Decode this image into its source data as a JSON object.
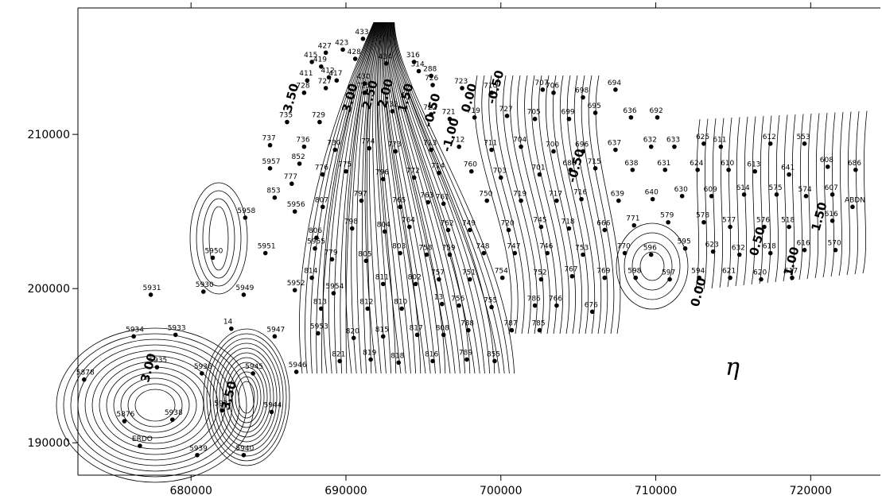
{
  "chart_data": {
    "type": "scatter",
    "annotation": "η",
    "color": "#000000",
    "xlim": [
      672700,
      724500
    ],
    "ylim": [
      187900,
      218200
    ],
    "xticks": [
      680000,
      690000,
      700000,
      710000,
      720000
    ],
    "yticks": [
      190000,
      200000,
      210000
    ],
    "wells": {
      "labels": [
        "5878",
        "5934",
        "5931",
        "5933",
        "5930",
        "5935",
        "5936",
        "5876",
        "5938",
        "ERDO",
        "5939",
        "5937",
        "5945",
        "5944",
        "5940",
        "5950",
        "5949",
        "14",
        "5947",
        "5951",
        "5958",
        "5952",
        "5946",
        "5953",
        "853",
        "5956",
        "777",
        "5957",
        "737",
        "852",
        "735",
        "736",
        "729",
        "728",
        "776",
        "807",
        "806",
        "5955",
        "779",
        "814",
        "5954",
        "813",
        "821",
        "820",
        "730",
        "775",
        "797",
        "798",
        "805",
        "812",
        "811",
        "815",
        "819",
        "818",
        "810",
        "817",
        "816",
        "808",
        "13",
        "802",
        "803",
        "804",
        "764",
        "765",
        "796",
        "774",
        "773",
        "772",
        "713",
        "714",
        "763",
        "761",
        "762",
        "758",
        "759",
        "757",
        "756",
        "788",
        "789",
        "855",
        "787",
        "755",
        "751",
        "748",
        "749",
        "750",
        "760",
        "712",
        "721",
        "719",
        "722",
        "723",
        "726",
        "711",
        "703",
        "719",
        "720",
        "747",
        "754",
        "786",
        "785",
        "752",
        "745",
        "746",
        "718",
        "717",
        "701",
        "704",
        "700",
        "727",
        "705",
        "707",
        "710",
        "706",
        "699",
        "698",
        "694",
        "695",
        "636",
        "692",
        "696",
        "688",
        "716",
        "715",
        "637",
        "638",
        "632",
        "633",
        "631",
        "639",
        "640",
        "630",
        "624",
        "625",
        "611",
        "612",
        "553",
        "610",
        "613",
        "641",
        "608",
        "686",
        "607",
        "574",
        "575",
        "614",
        "609",
        "ABDN",
        "616",
        "518",
        "576",
        "577",
        "578",
        "666",
        "771",
        "579",
        "753",
        "770",
        "596",
        "595",
        "623",
        "632",
        "618",
        "616",
        "570",
        "767",
        "769",
        "598",
        "597",
        "594",
        "621",
        "620",
        "617",
        "766",
        "676",
        "415",
        "427",
        "423",
        "433",
        "419",
        "412",
        "411",
        "417",
        "428",
        "430",
        "434",
        "316",
        "314",
        "288",
        "727",
        "725",
        "732"
      ],
      "x": [
        673100,
        676300,
        677400,
        679000,
        680800,
        677800,
        680700,
        675700,
        678800,
        676700,
        680400,
        682000,
        684000,
        685200,
        683400,
        681400,
        683400,
        682600,
        685400,
        684800,
        683500,
        686700,
        686800,
        688200,
        685400,
        686700,
        686500,
        685100,
        685100,
        687000,
        686200,
        687300,
        688300,
        687300,
        688500,
        688500,
        688100,
        688000,
        689100,
        687800,
        689200,
        688400,
        689600,
        690500,
        689300,
        690000,
        691000,
        690400,
        691300,
        691400,
        692400,
        692400,
        691600,
        693400,
        693600,
        694600,
        695600,
        696300,
        696200,
        694500,
        693500,
        692500,
        694100,
        693500,
        692400,
        691500,
        693200,
        694400,
        695500,
        696000,
        695300,
        696300,
        696600,
        695200,
        696700,
        696000,
        697300,
        697900,
        697800,
        699600,
        700700,
        699400,
        698000,
        698900,
        698000,
        699100,
        698100,
        697300,
        696700,
        698300,
        695500,
        697500,
        695600,
        699400,
        700000,
        701300,
        700500,
        700900,
        700100,
        702200,
        702500,
        702600,
        702600,
        703000,
        704400,
        703600,
        702500,
        701300,
        703400,
        700400,
        702200,
        702700,
        699400,
        703400,
        704400,
        705300,
        707400,
        706100,
        708400,
        710100,
        705300,
        704500,
        705200,
        706100,
        707400,
        708500,
        709700,
        711200,
        710600,
        707600,
        709800,
        711700,
        712700,
        713100,
        714200,
        717400,
        719600,
        714700,
        716400,
        718600,
        721100,
        722900,
        721400,
        719700,
        717800,
        715700,
        713600,
        722700,
        721400,
        718600,
        717000,
        714800,
        713100,
        706700,
        708600,
        710800,
        705300,
        708000,
        709700,
        711900,
        713700,
        715400,
        717400,
        719600,
        721600,
        704600,
        706700,
        708700,
        710900,
        712800,
        714800,
        716800,
        718800,
        703600,
        705900,
        687800,
        688700,
        689800,
        691100,
        688400,
        688900,
        687500,
        689400,
        690600,
        691200,
        692600,
        694400,
        694700,
        695500,
        688700,
        691200,
        693000
      ],
      "y": [
        194100,
        196900,
        199600,
        197000,
        199800,
        194900,
        194500,
        191400,
        191500,
        189800,
        189200,
        192100,
        194500,
        192000,
        189200,
        202000,
        199600,
        197400,
        196900,
        202300,
        204600,
        199900,
        194600,
        197100,
        205900,
        205000,
        206800,
        207800,
        209300,
        208100,
        210800,
        209200,
        210800,
        212700,
        207400,
        205300,
        203300,
        202600,
        201900,
        200700,
        199700,
        198700,
        195300,
        196800,
        209000,
        207600,
        205700,
        203900,
        201800,
        198700,
        200300,
        196900,
        195400,
        195200,
        198700,
        197000,
        195300,
        197000,
        199000,
        200300,
        202300,
        203700,
        204000,
        205300,
        207100,
        209100,
        208900,
        207200,
        209000,
        207500,
        205600,
        205500,
        203800,
        202200,
        202200,
        200600,
        198900,
        197300,
        195400,
        195300,
        197300,
        198800,
        200600,
        202300,
        203800,
        205700,
        207600,
        209200,
        211000,
        211100,
        211300,
        213000,
        213200,
        209000,
        207200,
        205700,
        203800,
        202300,
        200700,
        198900,
        197300,
        200600,
        204000,
        202300,
        203900,
        205700,
        207400,
        209200,
        208900,
        211200,
        211000,
        212900,
        212700,
        212700,
        211000,
        212400,
        212900,
        211400,
        211100,
        211100,
        208900,
        207700,
        205800,
        207800,
        209000,
        207700,
        209200,
        209200,
        207700,
        205700,
        205800,
        206000,
        207700,
        209400,
        209200,
        209400,
        209400,
        207700,
        207600,
        207400,
        207900,
        207700,
        206100,
        206000,
        206100,
        206100,
        206000,
        205300,
        204400,
        204000,
        204000,
        204000,
        204300,
        203800,
        204100,
        204300,
        202200,
        202300,
        202200,
        202600,
        202400,
        202200,
        202300,
        202500,
        202500,
        200800,
        200700,
        200700,
        200600,
        200700,
        200700,
        200600,
        200700,
        198900,
        198500,
        214700,
        215300,
        215500,
        216200,
        214400,
        213700,
        213500,
        213500,
        214900,
        213300,
        214600,
        214700,
        214100,
        213800,
        213000,
        212700,
        211500
      ]
    },
    "contour_labels": {
      "labels": [
        "3.50",
        "3.00",
        "2.50",
        "2.00",
        "1.50",
        "-0.50",
        "0.00",
        "-1.00",
        "-0.50",
        "-0.50",
        "0.00",
        "0.50",
        "1.00",
        "1.50",
        "3.00",
        "3.50"
      ],
      "x": [
        686700,
        690500,
        691800,
        692800,
        694100,
        695800,
        698200,
        697000,
        699900,
        705100,
        713000,
        716800,
        719000,
        720800,
        677500,
        682700
      ],
      "y": [
        212300,
        212300,
        212500,
        212600,
        212300,
        211500,
        212300,
        209900,
        213000,
        207900,
        199700,
        203000,
        201700,
        204600,
        194800,
        193000
      ]
    }
  }
}
